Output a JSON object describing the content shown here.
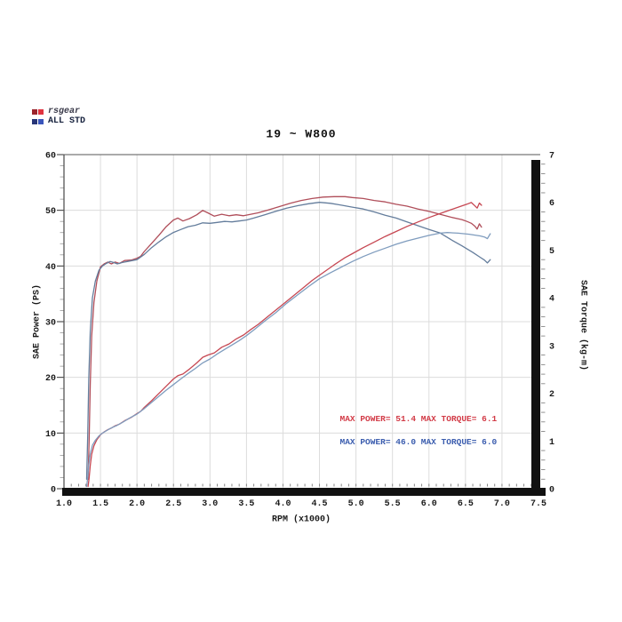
{
  "page": {
    "background": "#ffffff"
  },
  "legend": {
    "items": [
      {
        "label": "rsgear",
        "swatches": [
          "#9b242c",
          "#e0333f"
        ]
      },
      {
        "label": "ALL STD",
        "swatches": [
          "#273677",
          "#3a55bb"
        ]
      }
    ]
  },
  "chart_data": {
    "type": "line",
    "title": "19 ~ W800",
    "xlabel": "RPM (x1000)",
    "ylabel_left": "SAE Power (PS)",
    "ylabel_right": "SAE Torque (kg-m)",
    "xlim": [
      1.0,
      7.5
    ],
    "ylim_left": [
      0,
      60
    ],
    "ylim_right": [
      0,
      7
    ],
    "x_ticks": [
      1.0,
      1.5,
      2.0,
      2.5,
      3.0,
      3.5,
      4.0,
      4.5,
      5.0,
      5.5,
      6.0,
      6.5,
      7.0,
      7.5
    ],
    "y_ticks_left": [
      0,
      10,
      20,
      30,
      40,
      50,
      60
    ],
    "y_ticks_right": [
      0,
      1,
      2,
      3,
      4,
      5,
      6,
      7
    ],
    "grid": true,
    "legend_position": "top-left",
    "colors": {
      "grid": "#dcdcdc",
      "frame": "#111111",
      "axis": "#555555",
      "tick_text": "#1a1a1a"
    },
    "series": [
      {
        "name": "rsgear-torque",
        "axis": "right",
        "color": "#b04e5a",
        "unit": "kg-m",
        "points": [
          [
            1.33,
            0.2
          ],
          [
            1.345,
            1.0
          ],
          [
            1.36,
            2.2
          ],
          [
            1.38,
            3.2
          ],
          [
            1.41,
            3.9
          ],
          [
            1.45,
            4.35
          ],
          [
            1.5,
            4.65
          ],
          [
            1.55,
            4.71
          ],
          [
            1.6,
            4.75
          ],
          [
            1.65,
            4.71
          ],
          [
            1.7,
            4.75
          ],
          [
            1.76,
            4.72
          ],
          [
            1.83,
            4.78
          ],
          [
            1.92,
            4.79
          ],
          [
            2.0,
            4.83
          ],
          [
            2.05,
            4.87
          ],
          [
            2.1,
            4.97
          ],
          [
            2.2,
            5.14
          ],
          [
            2.3,
            5.31
          ],
          [
            2.4,
            5.49
          ],
          [
            2.5,
            5.63
          ],
          [
            2.56,
            5.67
          ],
          [
            2.63,
            5.61
          ],
          [
            2.72,
            5.66
          ],
          [
            2.82,
            5.74
          ],
          [
            2.9,
            5.83
          ],
          [
            2.97,
            5.78
          ],
          [
            3.06,
            5.71
          ],
          [
            3.16,
            5.75
          ],
          [
            3.26,
            5.72
          ],
          [
            3.36,
            5.74
          ],
          [
            3.46,
            5.72
          ],
          [
            3.56,
            5.75
          ],
          [
            3.66,
            5.78
          ],
          [
            3.8,
            5.84
          ],
          [
            3.95,
            5.91
          ],
          [
            4.1,
            5.98
          ],
          [
            4.25,
            6.04
          ],
          [
            4.4,
            6.08
          ],
          [
            4.55,
            6.11
          ],
          [
            4.7,
            6.12
          ],
          [
            4.85,
            6.12
          ],
          [
            4.95,
            6.1
          ],
          [
            5.1,
            6.08
          ],
          [
            5.25,
            6.04
          ],
          [
            5.4,
            6.01
          ],
          [
            5.55,
            5.96
          ],
          [
            5.7,
            5.92
          ],
          [
            5.85,
            5.86
          ],
          [
            6.0,
            5.81
          ],
          [
            6.15,
            5.75
          ],
          [
            6.3,
            5.69
          ],
          [
            6.45,
            5.64
          ],
          [
            6.52,
            5.6
          ],
          [
            6.58,
            5.56
          ],
          [
            6.63,
            5.5
          ],
          [
            6.66,
            5.44
          ],
          [
            6.69,
            5.55
          ],
          [
            6.72,
            5.48
          ]
        ]
      },
      {
        "name": "std-torque",
        "axis": "right",
        "color": "#647d9c",
        "unit": "kg-m",
        "points": [
          [
            1.31,
            0.2
          ],
          [
            1.325,
            1.1
          ],
          [
            1.34,
            2.3
          ],
          [
            1.36,
            3.3
          ],
          [
            1.39,
            4.0
          ],
          [
            1.43,
            4.35
          ],
          [
            1.48,
            4.58
          ],
          [
            1.53,
            4.67
          ],
          [
            1.58,
            4.72
          ],
          [
            1.63,
            4.76
          ],
          [
            1.68,
            4.74
          ],
          [
            1.73,
            4.71
          ],
          [
            1.8,
            4.74
          ],
          [
            1.9,
            4.77
          ],
          [
            2.0,
            4.8
          ],
          [
            2.1,
            4.91
          ],
          [
            2.2,
            5.05
          ],
          [
            2.3,
            5.17
          ],
          [
            2.4,
            5.28
          ],
          [
            2.5,
            5.37
          ],
          [
            2.6,
            5.43
          ],
          [
            2.7,
            5.49
          ],
          [
            2.8,
            5.52
          ],
          [
            2.9,
            5.57
          ],
          [
            3.0,
            5.56
          ],
          [
            3.1,
            5.58
          ],
          [
            3.2,
            5.6
          ],
          [
            3.3,
            5.59
          ],
          [
            3.4,
            5.61
          ],
          [
            3.5,
            5.63
          ],
          [
            3.6,
            5.67
          ],
          [
            3.75,
            5.74
          ],
          [
            3.9,
            5.81
          ],
          [
            4.05,
            5.88
          ],
          [
            4.2,
            5.93
          ],
          [
            4.35,
            5.97
          ],
          [
            4.5,
            6.0
          ],
          [
            4.65,
            5.98
          ],
          [
            4.8,
            5.94
          ],
          [
            4.95,
            5.9
          ],
          [
            5.1,
            5.86
          ],
          [
            5.25,
            5.8
          ],
          [
            5.4,
            5.73
          ],
          [
            5.55,
            5.67
          ],
          [
            5.7,
            5.59
          ],
          [
            5.85,
            5.51
          ],
          [
            6.0,
            5.43
          ],
          [
            6.15,
            5.36
          ],
          [
            6.3,
            5.22
          ],
          [
            6.45,
            5.09
          ],
          [
            6.6,
            4.95
          ],
          [
            6.7,
            4.85
          ],
          [
            6.76,
            4.79
          ],
          [
            6.8,
            4.73
          ],
          [
            6.84,
            4.8
          ]
        ]
      },
      {
        "name": "rsgear-power",
        "axis": "left",
        "color": "#c64752",
        "unit": "PS",
        "points": [
          [
            1.33,
            0.4
          ],
          [
            1.345,
            1.9
          ],
          [
            1.36,
            4.2
          ],
          [
            1.38,
            6.2
          ],
          [
            1.41,
            7.7
          ],
          [
            1.45,
            8.8
          ],
          [
            1.5,
            9.7
          ],
          [
            1.55,
            10.2
          ],
          [
            1.6,
            10.6
          ],
          [
            1.65,
            10.9
          ],
          [
            1.7,
            11.3
          ],
          [
            1.76,
            11.6
          ],
          [
            1.83,
            12.2
          ],
          [
            1.92,
            12.8
          ],
          [
            2.0,
            13.5
          ],
          [
            2.05,
            13.9
          ],
          [
            2.1,
            14.6
          ],
          [
            2.2,
            15.8
          ],
          [
            2.3,
            17.1
          ],
          [
            2.4,
            18.4
          ],
          [
            2.5,
            19.7
          ],
          [
            2.56,
            20.3
          ],
          [
            2.63,
            20.6
          ],
          [
            2.72,
            21.5
          ],
          [
            2.82,
            22.6
          ],
          [
            2.9,
            23.6
          ],
          [
            2.97,
            24.0
          ],
          [
            3.06,
            24.4
          ],
          [
            3.16,
            25.4
          ],
          [
            3.26,
            26.0
          ],
          [
            3.36,
            26.9
          ],
          [
            3.46,
            27.6
          ],
          [
            3.56,
            28.6
          ],
          [
            3.66,
            29.5
          ],
          [
            3.8,
            31.0
          ],
          [
            3.95,
            32.6
          ],
          [
            4.1,
            34.2
          ],
          [
            4.25,
            35.8
          ],
          [
            4.4,
            37.4
          ],
          [
            4.55,
            38.8
          ],
          [
            4.7,
            40.2
          ],
          [
            4.85,
            41.5
          ],
          [
            4.95,
            42.2
          ],
          [
            5.1,
            43.3
          ],
          [
            5.25,
            44.3
          ],
          [
            5.4,
            45.3
          ],
          [
            5.55,
            46.2
          ],
          [
            5.7,
            47.1
          ],
          [
            5.85,
            47.9
          ],
          [
            6.0,
            48.7
          ],
          [
            6.15,
            49.4
          ],
          [
            6.3,
            50.1
          ],
          [
            6.45,
            50.8
          ],
          [
            6.52,
            51.1
          ],
          [
            6.58,
            51.4
          ],
          [
            6.63,
            50.8
          ],
          [
            6.66,
            50.4
          ],
          [
            6.69,
            51.3
          ],
          [
            6.72,
            50.9
          ]
        ]
      },
      {
        "name": "std-power",
        "axis": "left",
        "color": "#7f9cbe",
        "unit": "PS",
        "points": [
          [
            1.31,
            0.4
          ],
          [
            1.325,
            2.0
          ],
          [
            1.34,
            4.3
          ],
          [
            1.36,
            6.3
          ],
          [
            1.39,
            7.8
          ],
          [
            1.43,
            8.7
          ],
          [
            1.48,
            9.5
          ],
          [
            1.53,
            10.0
          ],
          [
            1.58,
            10.4
          ],
          [
            1.63,
            10.8
          ],
          [
            1.68,
            11.1
          ],
          [
            1.73,
            11.4
          ],
          [
            1.8,
            11.9
          ],
          [
            1.9,
            12.7
          ],
          [
            2.0,
            13.4
          ],
          [
            2.1,
            14.4
          ],
          [
            2.2,
            15.5
          ],
          [
            2.3,
            16.6
          ],
          [
            2.4,
            17.7
          ],
          [
            2.5,
            18.7
          ],
          [
            2.6,
            19.7
          ],
          [
            2.7,
            20.7
          ],
          [
            2.8,
            21.6
          ],
          [
            2.9,
            22.6
          ],
          [
            3.0,
            23.3
          ],
          [
            3.1,
            24.2
          ],
          [
            3.2,
            25.0
          ],
          [
            3.3,
            25.8
          ],
          [
            3.4,
            26.6
          ],
          [
            3.5,
            27.5
          ],
          [
            3.6,
            28.5
          ],
          [
            3.75,
            30.1
          ],
          [
            3.9,
            31.6
          ],
          [
            4.05,
            33.3
          ],
          [
            4.2,
            34.8
          ],
          [
            4.35,
            36.3
          ],
          [
            4.5,
            37.7
          ],
          [
            4.65,
            38.8
          ],
          [
            4.8,
            39.8
          ],
          [
            4.95,
            40.8
          ],
          [
            5.1,
            41.7
          ],
          [
            5.25,
            42.5
          ],
          [
            5.4,
            43.2
          ],
          [
            5.55,
            43.9
          ],
          [
            5.7,
            44.5
          ],
          [
            5.85,
            45.0
          ],
          [
            6.0,
            45.5
          ],
          [
            6.15,
            45.9
          ],
          [
            6.25,
            46.0
          ],
          [
            6.4,
            45.9
          ],
          [
            6.55,
            45.7
          ],
          [
            6.7,
            45.4
          ],
          [
            6.76,
            45.2
          ],
          [
            6.8,
            44.9
          ],
          [
            6.84,
            45.8
          ]
        ]
      }
    ],
    "annotations": [
      {
        "text": "MAX POWER= 51.4   MAX TORQUE= 6.1",
        "color": "#d23a46",
        "x": 4.78,
        "y_ps": 12.1
      },
      {
        "text": "MAX POWER= 46.0   MAX TORQUE= 6.0",
        "color": "#3a5cae",
        "x": 4.78,
        "y_ps": 8.0
      }
    ]
  }
}
